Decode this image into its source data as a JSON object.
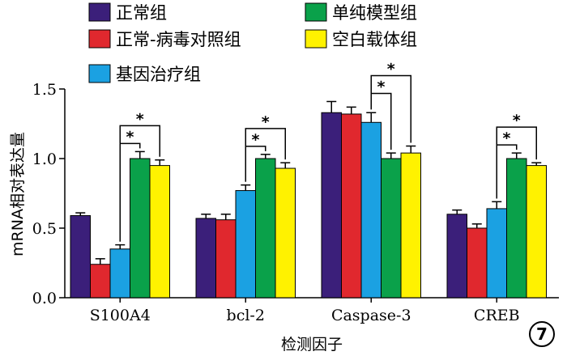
{
  "chart_data": {
    "type": "bar",
    "xlabel": "检测因子",
    "ylabel": "mRNA相对表达量",
    "ylim": [
      0,
      1.5
    ],
    "yticks": [
      "0.0",
      "0.5",
      "1.0",
      "1.5"
    ],
    "categories": [
      "S100A4",
      "bcl-2",
      "Caspase-3",
      "CREB"
    ],
    "series": [
      {
        "name": "正常组",
        "color": "#3b1f7a",
        "values": [
          0.59,
          0.57,
          1.33,
          0.6
        ],
        "errors": [
          0.02,
          0.03,
          0.08,
          0.03
        ]
      },
      {
        "name": "正常-病毒对照组",
        "color": "#e0282e",
        "values": [
          0.24,
          0.56,
          1.32,
          0.5
        ],
        "errors": [
          0.04,
          0.04,
          0.05,
          0.03
        ]
      },
      {
        "name": "基因治疗组",
        "color": "#1ba1e2",
        "values": [
          0.35,
          0.77,
          1.26,
          0.64
        ],
        "errors": [
          0.03,
          0.04,
          0.07,
          0.05
        ]
      },
      {
        "name": "单纯模型组",
        "color": "#0aa14a",
        "values": [
          1.0,
          1.0,
          1.0,
          1.0
        ],
        "errors": [
          0.05,
          0.03,
          0.04,
          0.04
        ]
      },
      {
        "name": "空白载体组",
        "color": "#fff200",
        "values": [
          0.95,
          0.93,
          1.04,
          0.95
        ],
        "errors": [
          0.04,
          0.04,
          0.05,
          0.02
        ]
      }
    ],
    "significance": [
      {
        "category": 0,
        "from": 2,
        "to": 3,
        "label": "*"
      },
      {
        "category": 0,
        "from": 2,
        "to": 4,
        "label": "*"
      },
      {
        "category": 1,
        "from": 2,
        "to": 3,
        "label": "*"
      },
      {
        "category": 1,
        "from": 2,
        "to": 4,
        "label": "*"
      },
      {
        "category": 2,
        "from": 2,
        "to": 3,
        "label": "*"
      },
      {
        "category": 2,
        "from": 2,
        "to": 4,
        "label": "*"
      },
      {
        "category": 3,
        "from": 2,
        "to": 3,
        "label": "*"
      },
      {
        "category": 3,
        "from": 2,
        "to": 4,
        "label": "*"
      }
    ],
    "legend": "top"
  },
  "figure_number": "7"
}
